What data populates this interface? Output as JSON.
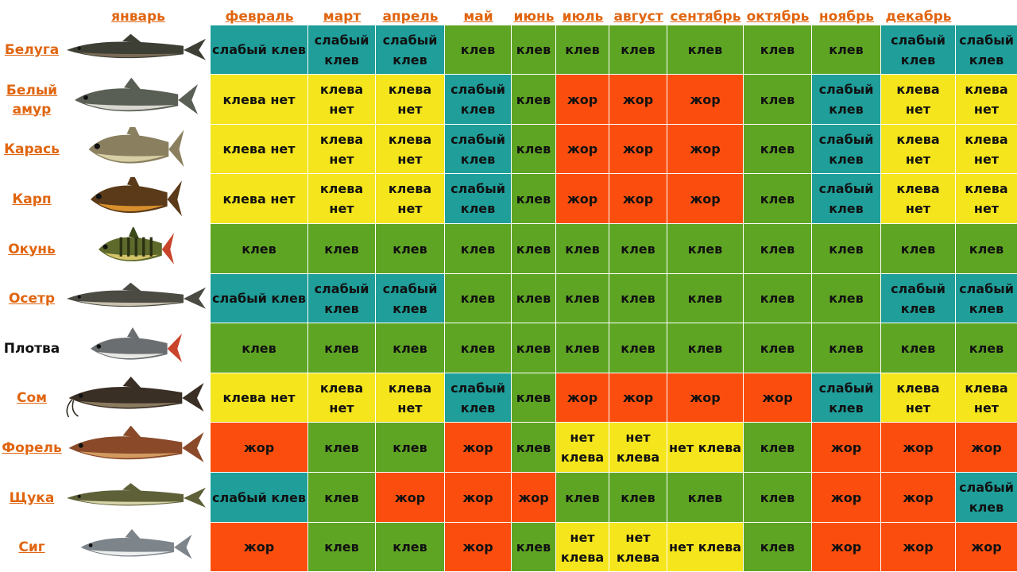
{
  "months": [
    "январь",
    "февраль",
    "март",
    "апрель",
    "май",
    "июнь",
    "июль",
    "август",
    "сентябрь",
    "октябрь",
    "ноябрь",
    "декабрь"
  ],
  "status_labels": {
    "klev": "клев",
    "weak": "слабый клев",
    "weak2": "слабый\nклев",
    "none": "клева нет",
    "none2": "клева\nнет",
    "zhor": "жор",
    "net_kleva": "нет клева",
    "net_kleva2": "нет\nклева"
  },
  "colors": {
    "klev": "#5fa524",
    "weak": "#1f9e9a",
    "none": "#f5e51c",
    "zhor": "#fb4e0e",
    "link": "#e06510"
  },
  "fish": [
    {
      "name": "Белуга",
      "icon": "beluga-fish-icon",
      "cells": [
        [
          "weak",
          "weak"
        ],
        [
          "weak2",
          "weak"
        ],
        [
          "weak2",
          "weak"
        ],
        [
          "klev",
          "klev"
        ],
        [
          "klev",
          "klev"
        ],
        [
          "klev",
          "klev"
        ],
        [
          "klev",
          "klev"
        ],
        [
          "klev",
          "klev"
        ],
        [
          "klev",
          "klev"
        ],
        [
          "klev",
          "klev"
        ],
        [
          "weak2",
          "weak"
        ],
        [
          "weak2",
          "weak"
        ]
      ]
    },
    {
      "name": "Белый\nамур",
      "icon": "grass-carp-fish-icon",
      "cells": [
        [
          "none",
          "none"
        ],
        [
          "none2",
          "none"
        ],
        [
          "none2",
          "none"
        ],
        [
          "weak2",
          "weak"
        ],
        [
          "klev",
          "klev"
        ],
        [
          "zhor",
          "zhor"
        ],
        [
          "zhor",
          "zhor"
        ],
        [
          "zhor",
          "zhor"
        ],
        [
          "klev",
          "klev"
        ],
        [
          "weak2",
          "weak"
        ],
        [
          "none2",
          "none"
        ],
        [
          "none2",
          "none"
        ]
      ]
    },
    {
      "name": "Карась",
      "icon": "crucian-fish-icon",
      "cells": [
        [
          "none",
          "none"
        ],
        [
          "none2",
          "none"
        ],
        [
          "none2",
          "none"
        ],
        [
          "weak2",
          "weak"
        ],
        [
          "klev",
          "klev"
        ],
        [
          "zhor",
          "zhor"
        ],
        [
          "zhor",
          "zhor"
        ],
        [
          "zhor",
          "zhor"
        ],
        [
          "klev",
          "klev"
        ],
        [
          "weak2",
          "weak"
        ],
        [
          "none2",
          "none"
        ],
        [
          "none2",
          "none"
        ]
      ]
    },
    {
      "name": "Карп",
      "icon": "carp-fish-icon",
      "cells": [
        [
          "none",
          "none"
        ],
        [
          "none2",
          "none"
        ],
        [
          "none2",
          "none"
        ],
        [
          "weak2",
          "weak"
        ],
        [
          "klev",
          "klev"
        ],
        [
          "zhor",
          "zhor"
        ],
        [
          "zhor",
          "zhor"
        ],
        [
          "zhor",
          "zhor"
        ],
        [
          "klev",
          "klev"
        ],
        [
          "weak2",
          "weak"
        ],
        [
          "none2",
          "none"
        ],
        [
          "none2",
          "none"
        ]
      ]
    },
    {
      "name": "Окунь",
      "icon": "perch-fish-icon",
      "cells": [
        [
          "klev",
          "klev"
        ],
        [
          "klev",
          "klev"
        ],
        [
          "klev",
          "klev"
        ],
        [
          "klev",
          "klev"
        ],
        [
          "klev",
          "klev"
        ],
        [
          "klev",
          "klev"
        ],
        [
          "klev",
          "klev"
        ],
        [
          "klev",
          "klev"
        ],
        [
          "klev",
          "klev"
        ],
        [
          "klev",
          "klev"
        ],
        [
          "klev",
          "klev"
        ],
        [
          "klev",
          "klev"
        ]
      ]
    },
    {
      "name": "Осетр",
      "icon": "sturgeon-fish-icon",
      "cells": [
        [
          "weak",
          "weak"
        ],
        [
          "weak2",
          "weak"
        ],
        [
          "weak2",
          "weak"
        ],
        [
          "klev",
          "klev"
        ],
        [
          "klev",
          "klev"
        ],
        [
          "klev",
          "klev"
        ],
        [
          "klev",
          "klev"
        ],
        [
          "klev",
          "klev"
        ],
        [
          "klev",
          "klev"
        ],
        [
          "klev",
          "klev"
        ],
        [
          "weak2",
          "weak"
        ],
        [
          "weak2",
          "weak"
        ]
      ]
    },
    {
      "name": "Плотва",
      "icon": "roach-fish-icon",
      "plain": true,
      "cells": [
        [
          "klev",
          "klev"
        ],
        [
          "klev",
          "klev"
        ],
        [
          "klev",
          "klev"
        ],
        [
          "klev",
          "klev"
        ],
        [
          "klev",
          "klev"
        ],
        [
          "klev",
          "klev"
        ],
        [
          "klev",
          "klev"
        ],
        [
          "klev",
          "klev"
        ],
        [
          "klev",
          "klev"
        ],
        [
          "klev",
          "klev"
        ],
        [
          "klev",
          "klev"
        ],
        [
          "klev",
          "klev"
        ]
      ]
    },
    {
      "name": "Сом",
      "icon": "catfish-fish-icon",
      "cells": [
        [
          "none",
          "none"
        ],
        [
          "none2",
          "none"
        ],
        [
          "none2",
          "none"
        ],
        [
          "weak2",
          "weak"
        ],
        [
          "klev",
          "klev"
        ],
        [
          "zhor",
          "zhor"
        ],
        [
          "zhor",
          "zhor"
        ],
        [
          "zhor",
          "zhor"
        ],
        [
          "zhor",
          "zhor"
        ],
        [
          "weak2",
          "weak"
        ],
        [
          "none2",
          "none"
        ],
        [
          "none2",
          "none"
        ]
      ]
    },
    {
      "name": "Форель",
      "icon": "trout-fish-icon",
      "cells": [
        [
          "zhor",
          "zhor"
        ],
        [
          "klev",
          "klev"
        ],
        [
          "klev",
          "klev"
        ],
        [
          "zhor",
          "zhor"
        ],
        [
          "klev",
          "klev"
        ],
        [
          "net_kleva2",
          "none"
        ],
        [
          "net_kleva2",
          "none"
        ],
        [
          "net_kleva",
          "none"
        ],
        [
          "klev",
          "klev"
        ],
        [
          "zhor",
          "zhor"
        ],
        [
          "zhor",
          "zhor"
        ],
        [
          "zhor",
          "zhor"
        ]
      ]
    },
    {
      "name": "Щука",
      "icon": "pike-fish-icon",
      "cells": [
        [
          "weak",
          "weak"
        ],
        [
          "klev",
          "klev"
        ],
        [
          "zhor",
          "zhor"
        ],
        [
          "zhor",
          "zhor"
        ],
        [
          "zhor",
          "zhor"
        ],
        [
          "klev",
          "klev"
        ],
        [
          "klev",
          "klev"
        ],
        [
          "klev",
          "klev"
        ],
        [
          "klev",
          "klev"
        ],
        [
          "zhor",
          "zhor"
        ],
        [
          "zhor",
          "zhor"
        ],
        [
          "weak2",
          "weak"
        ]
      ]
    },
    {
      "name": "Сиг",
      "icon": "whitefish-fish-icon",
      "cells": [
        [
          "zhor",
          "zhor"
        ],
        [
          "klev",
          "klev"
        ],
        [
          "klev",
          "klev"
        ],
        [
          "zhor",
          "zhor"
        ],
        [
          "klev",
          "klev"
        ],
        [
          "net_kleva2",
          "none"
        ],
        [
          "net_kleva2",
          "none"
        ],
        [
          "net_kleva",
          "none"
        ],
        [
          "klev",
          "klev"
        ],
        [
          "zhor",
          "zhor"
        ],
        [
          "zhor",
          "zhor"
        ],
        [
          "zhor",
          "zhor"
        ]
      ]
    }
  ]
}
